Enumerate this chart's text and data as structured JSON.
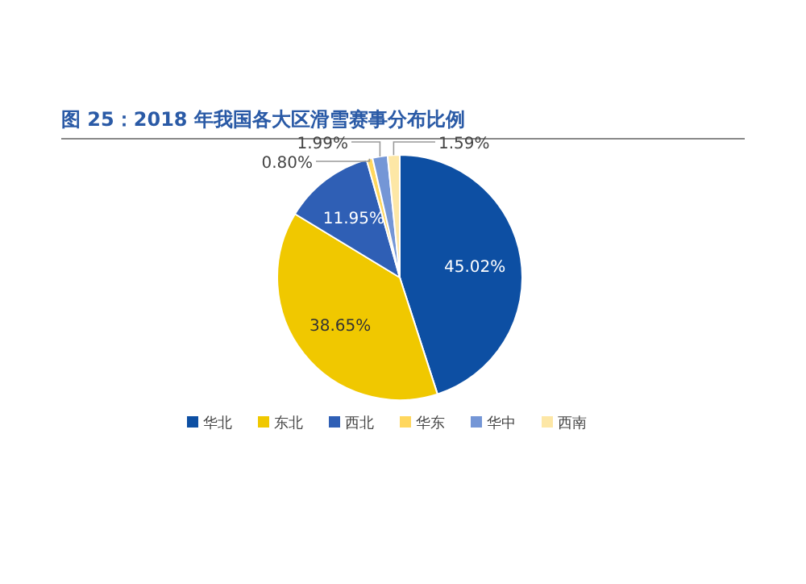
{
  "chart_data": {
    "type": "pie",
    "title": "图 25：2018 年我国各大区滑雪赛事分布比例",
    "categories": [
      "华北",
      "东北",
      "西北",
      "华东",
      "华中",
      "西南"
    ],
    "values": [
      45.02,
      38.65,
      11.95,
      0.8,
      1.99,
      1.59
    ],
    "colors": [
      "#0d4fa3",
      "#f0c800",
      "#2f5fb5",
      "#ffd75e",
      "#7496d6",
      "#fde7a6"
    ],
    "value_labels": [
      "45.02%",
      "38.65%",
      "11.95%",
      "0.80%",
      "1.99%",
      "1.59%"
    ],
    "legend": "bottom"
  }
}
